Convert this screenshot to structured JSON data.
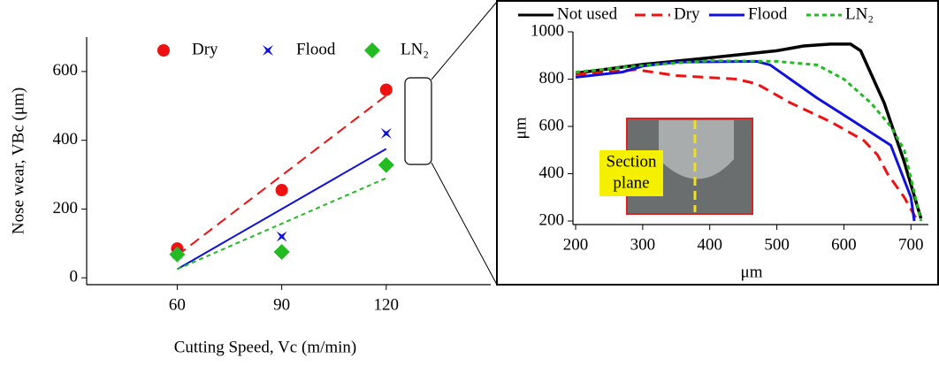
{
  "chart_data": [
    {
      "type": "scatter",
      "x_label": "Cutting Speed,  Vc (m/min)",
      "y_label": "Nose wear, VBc (μm)",
      "x": [
        60,
        90,
        120
      ],
      "xlim": [
        34,
        150
      ],
      "ylim": [
        -20,
        700
      ],
      "xticks": [
        60,
        90,
        120
      ],
      "yticks": [
        0,
        200,
        400,
        600
      ],
      "series": [
        {
          "name": "Dry",
          "color": "#ee1111",
          "marker": "circle",
          "dash": "dashed",
          "values": [
            85,
            255,
            547
          ],
          "trend_x": [
            60,
            120
          ],
          "trend_values": [
            65,
            530
          ]
        },
        {
          "name": "Flood",
          "color": "#1111dd",
          "marker": "star",
          "dash": "solid",
          "values": [
            70,
            120,
            420
          ],
          "trend_x": [
            60,
            120
          ],
          "trend_values": [
            25,
            375
          ]
        },
        {
          "name": "LN₂",
          "color": "#22bb22",
          "marker": "diamond",
          "dash": "dotted",
          "values": [
            68,
            75,
            328
          ],
          "trend_x": [
            60,
            120
          ],
          "trend_values": [
            25,
            290
          ]
        }
      ]
    },
    {
      "type": "line",
      "x_label": "μm",
      "y_label": "μm",
      "annotation_lines": [
        "Section",
        "plane"
      ],
      "xlim": [
        196,
        726
      ],
      "ylim": [
        185,
        1000
      ],
      "xticks": [
        200,
        300,
        400,
        500,
        600,
        700
      ],
      "yticks": [
        200,
        400,
        600,
        800,
        1000
      ],
      "series": [
        {
          "name": "Not used",
          "color": "#000000",
          "dash": "solid",
          "x": [
            200,
            300,
            400,
            500,
            540,
            580,
            610,
            625,
            660,
            690,
            715
          ],
          "values": [
            825,
            862,
            890,
            920,
            940,
            948,
            948,
            920,
            700,
            450,
            210
          ]
        },
        {
          "name": "Dry",
          "color": "#ee1111",
          "dash": "dashed",
          "x": [
            200,
            290,
            350,
            440,
            470,
            520,
            580,
            630,
            650,
            665,
            690,
            710
          ],
          "values": [
            820,
            840,
            815,
            800,
            780,
            700,
            620,
            540,
            480,
            400,
            300,
            200
          ]
        },
        {
          "name": "Flood",
          "color": "#1111dd",
          "dash": "solid",
          "x": [
            200,
            270,
            300,
            350,
            470,
            490,
            520,
            560,
            610,
            670,
            700,
            705
          ],
          "values": [
            808,
            830,
            855,
            872,
            875,
            860,
            800,
            720,
            630,
            520,
            300,
            200
          ]
        },
        {
          "name": "LN₂",
          "color": "#22bb22",
          "dash": "dotted",
          "x": [
            200,
            300,
            400,
            500,
            560,
            600,
            640,
            670,
            690,
            715
          ],
          "values": [
            830,
            858,
            878,
            875,
            860,
            800,
            700,
            600,
            500,
            200
          ]
        }
      ]
    }
  ]
}
